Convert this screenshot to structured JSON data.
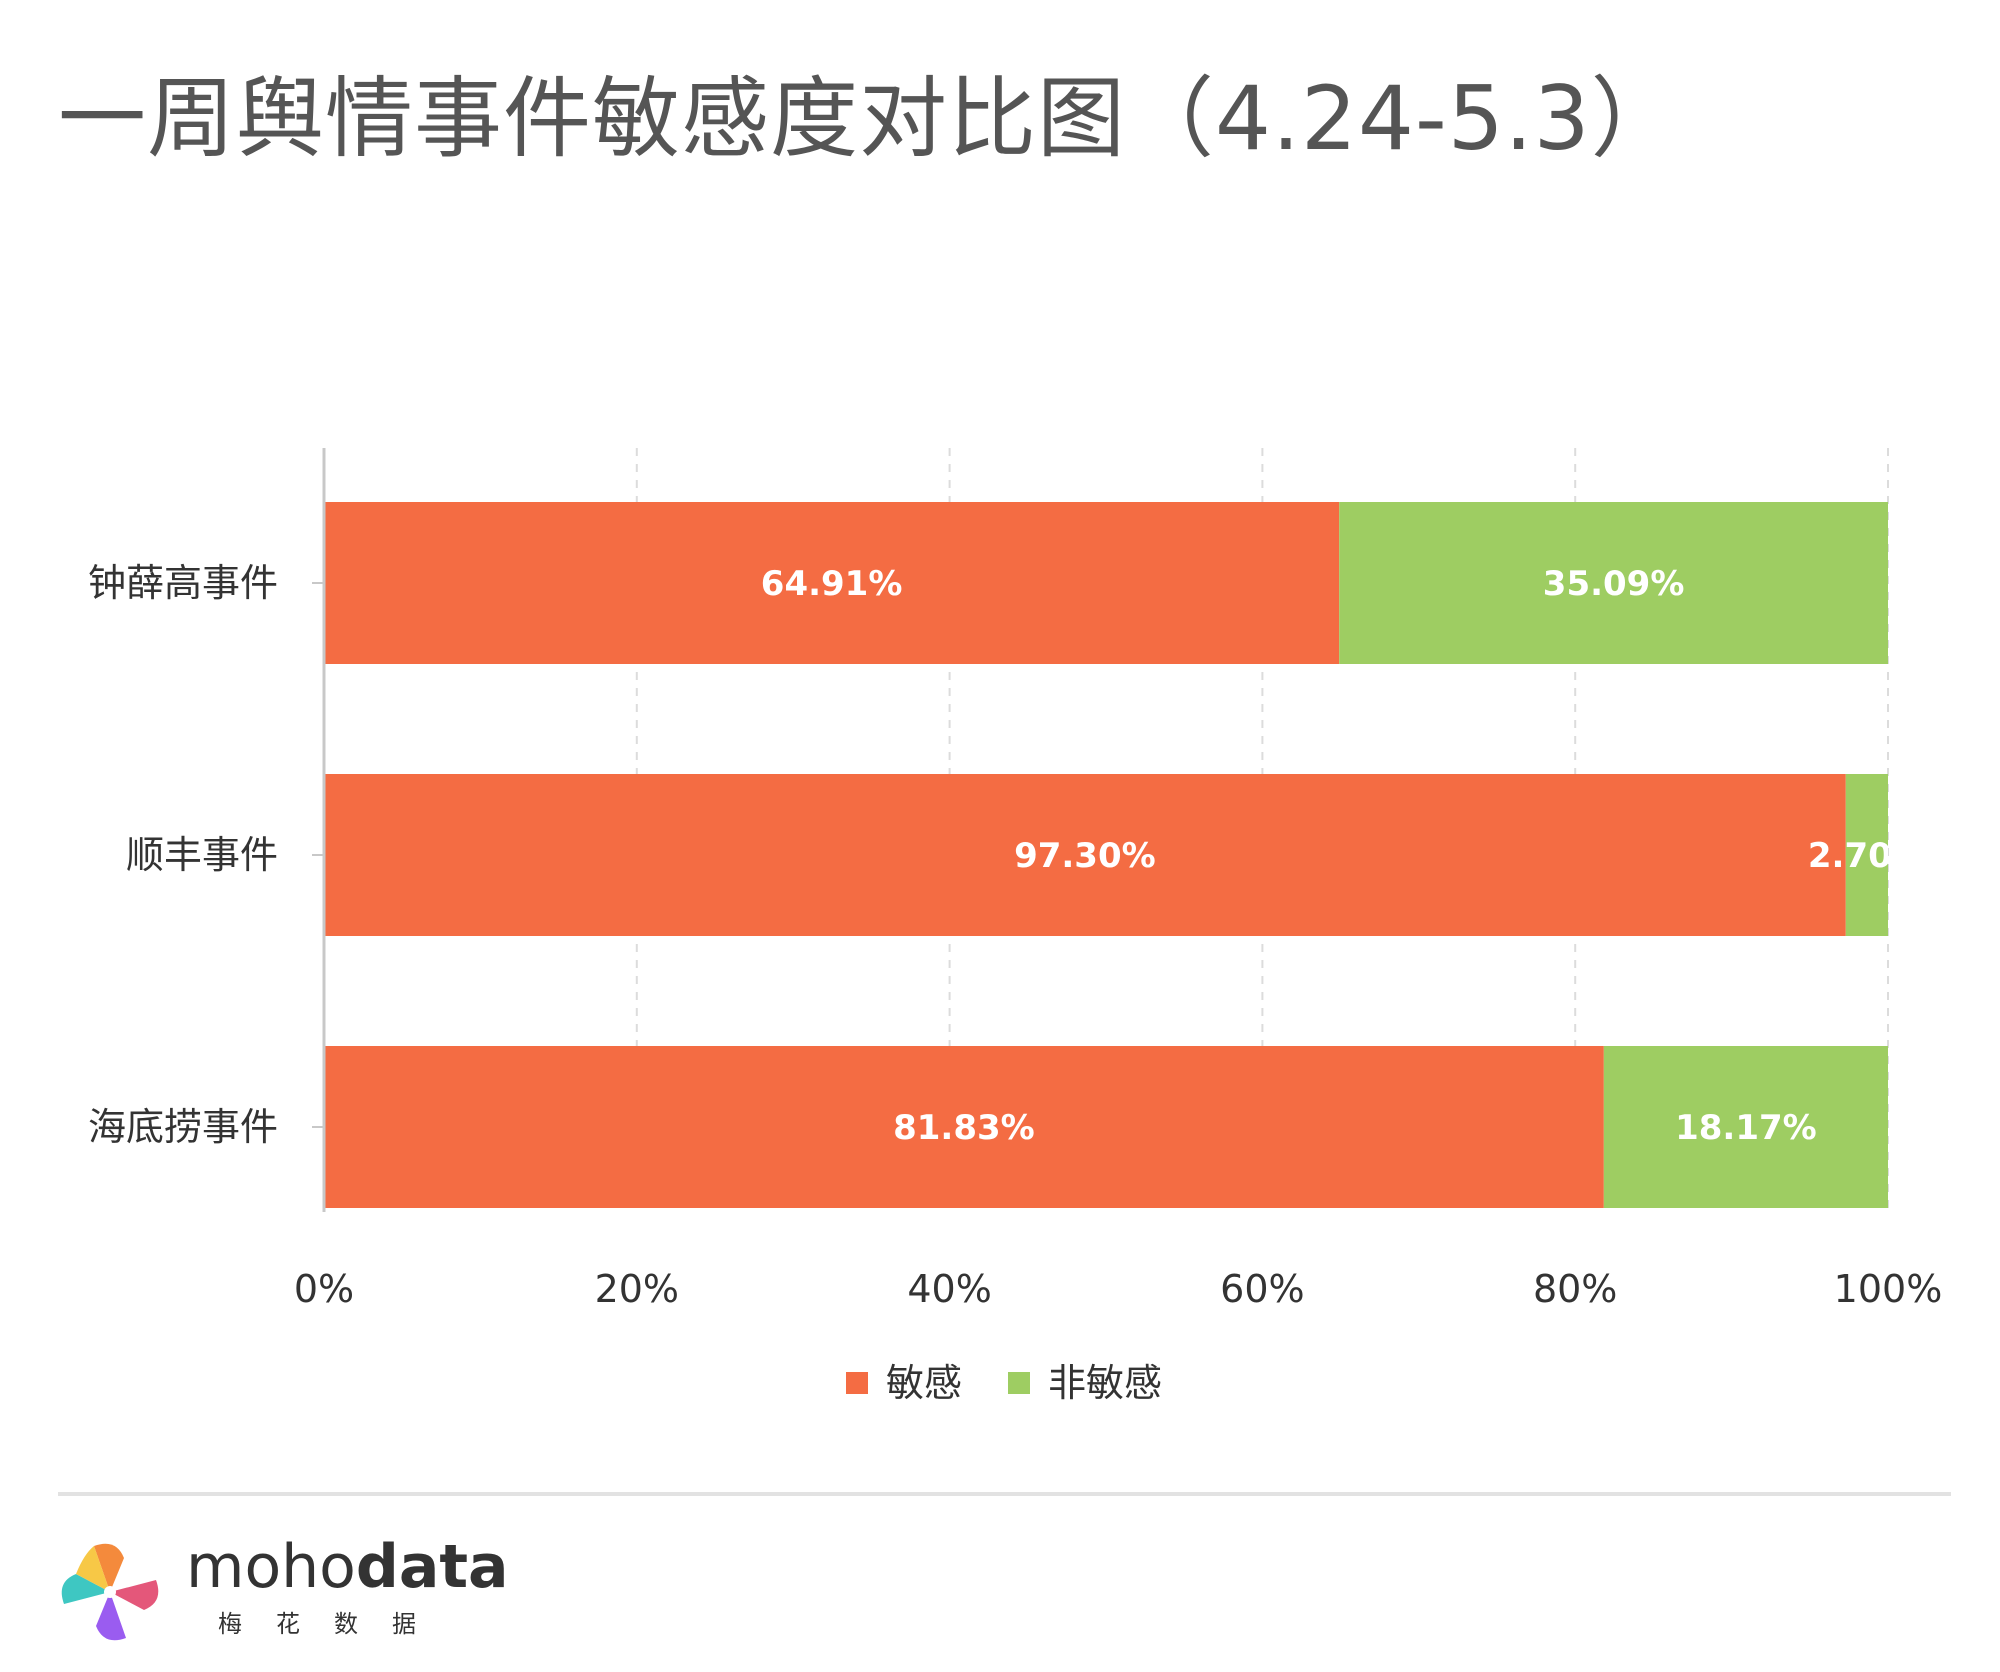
{
  "title": "一周舆情事件敏感度对比图（4.24-5.3）",
  "colors": {
    "sensitive": "#f46c43",
    "non_sensitive": "#9ecd62"
  },
  "legend": {
    "items": [
      "敏感",
      "非敏感"
    ]
  },
  "brand": {
    "name_part1": "moho",
    "name_part2": "data",
    "subtitle": "梅花数据"
  },
  "chart_data": {
    "type": "bar",
    "orientation": "horizontal",
    "stacked": true,
    "categories": [
      "钟薛高事件",
      "顺丰事件",
      "海底捞事件"
    ],
    "series": [
      {
        "name": "敏感",
        "values": [
          64.91,
          97.3,
          81.83
        ],
        "labels": [
          "64.91%",
          "97.30%",
          "81.83%"
        ]
      },
      {
        "name": "非敏感",
        "values": [
          35.09,
          2.7,
          18.17
        ],
        "labels": [
          "35.09%",
          "2.70%",
          "18.17%"
        ]
      }
    ],
    "xlim": [
      0,
      100
    ],
    "xticks": [
      "0%",
      "20%",
      "40%",
      "60%",
      "80%",
      "100%"
    ],
    "grid": true,
    "legend_position": "bottom"
  }
}
